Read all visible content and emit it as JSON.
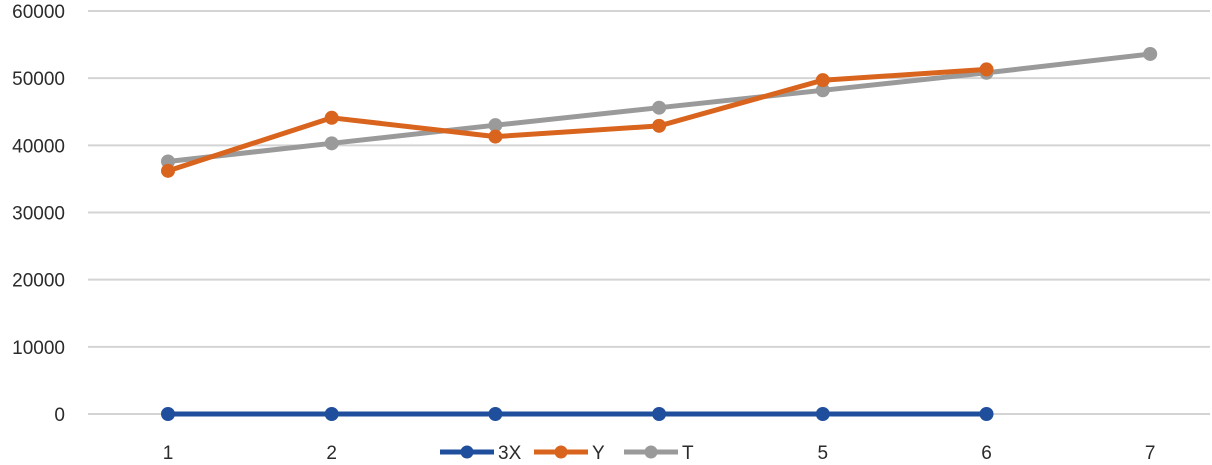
{
  "chart_data": {
    "type": "line",
    "x": [
      1,
      2,
      3,
      4,
      5,
      6,
      7
    ],
    "x_tick_labels": [
      "1",
      "2",
      "",
      "",
      "5",
      "6",
      "7"
    ],
    "ylim": [
      0,
      60000
    ],
    "y_ticks": [
      0,
      10000,
      20000,
      30000,
      40000,
      50000,
      60000
    ],
    "y_tick_labels": [
      "0",
      "10000",
      "20000",
      "30000",
      "40000",
      "50000",
      "60000"
    ],
    "grid": "horizontal",
    "legend_position": "bottom",
    "series": [
      {
        "name": "3X",
        "color": "#1f4e9c",
        "values": [
          0,
          0,
          0,
          0,
          0,
          0,
          null
        ]
      },
      {
        "name": "Y",
        "color": "#d9641e",
        "values": [
          36200,
          44100,
          41300,
          42900,
          49700,
          51300,
          null
        ]
      },
      {
        "name": "T",
        "color": "#9a9a9a",
        "values": [
          37600,
          40300,
          43000,
          45600,
          48200,
          50800,
          53600
        ]
      }
    ]
  }
}
